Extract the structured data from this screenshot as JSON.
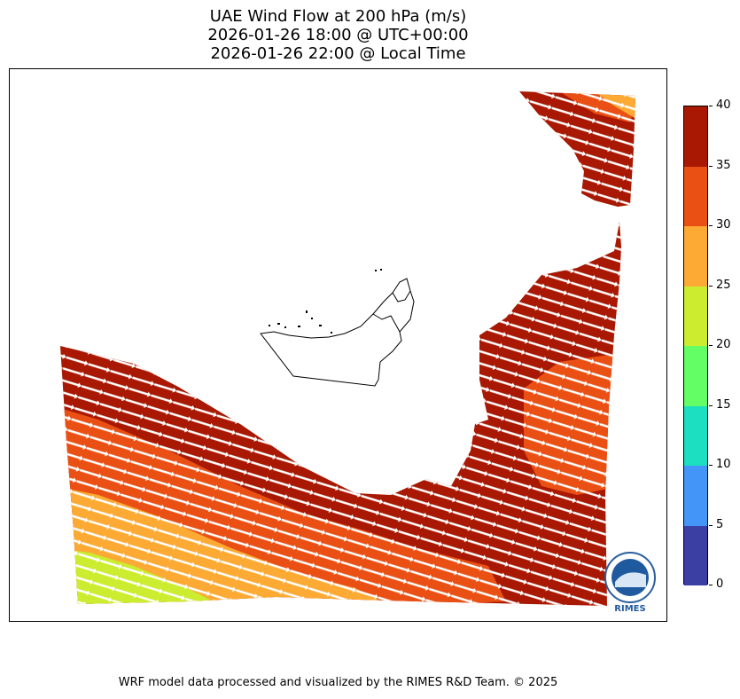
{
  "title": {
    "line1": "UAE Wind Flow at 200 hPa (m/s)",
    "line2": "2026-01-26 18:00 @ UTC+00:00",
    "line3": "2026-01-26 22:00 @ Local Time"
  },
  "colorbar": {
    "levels": [
      {
        "value": 0,
        "label": "0",
        "color": "#3b3fa3"
      },
      {
        "value": 5,
        "label": "5",
        "color": "#4395f7"
      },
      {
        "value": 10,
        "label": "10",
        "color": "#1bdfc0"
      },
      {
        "value": 15,
        "label": "15",
        "color": "#63fe66"
      },
      {
        "value": 20,
        "label": "20",
        "color": "#cbec2f"
      },
      {
        "value": 25,
        "label": "25",
        "color": "#fcaa34"
      },
      {
        "value": 30,
        "label": "30",
        "color": "#ea5014"
      },
      {
        "value": 35,
        "label": "35",
        "color": "#a81802"
      },
      {
        "value": 40,
        "label": "40",
        "color": null
      }
    ]
  },
  "logo": {
    "text": "RIMES",
    "ring_text": "Regional Integrated Multi-Hazard Early Warning System"
  },
  "footer": "WRF model data processed and visualized by the RIMES R&D Team. © 2025"
}
